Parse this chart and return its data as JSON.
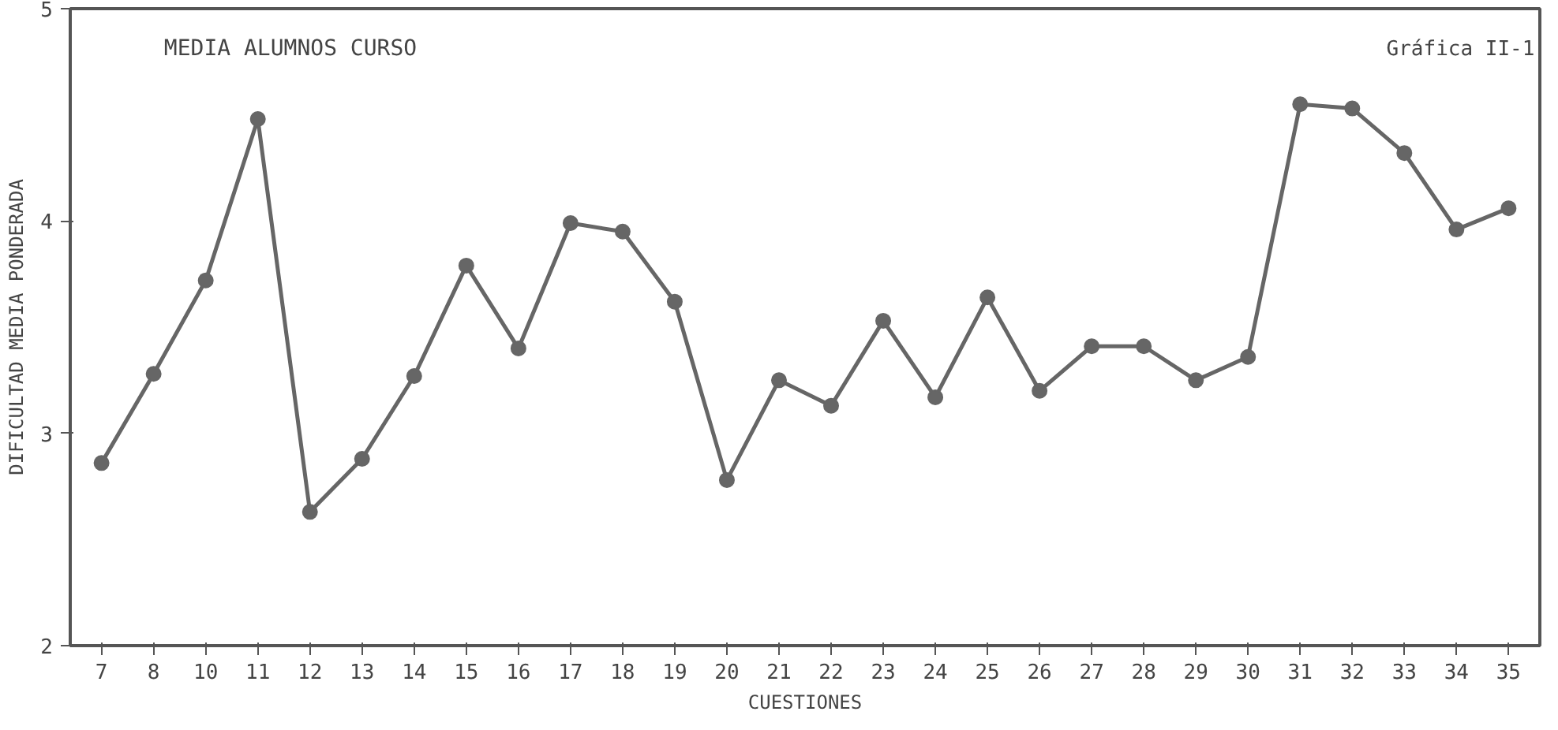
{
  "chart_data": {
    "type": "line",
    "title": "MEDIA ALUMNOS CURSO",
    "xlabel": "CUESTIONES",
    "ylabel": "DIFICULTAD MEDIA PONDERADA",
    "annotations": [
      "Gráfica II-1"
    ],
    "categories": [
      "7",
      "8",
      "10",
      "11",
      "12",
      "13",
      "14",
      "15",
      "16",
      "17",
      "18",
      "19",
      "20",
      "21",
      "22",
      "23",
      "24",
      "25",
      "26",
      "27",
      "28",
      "29",
      "30",
      "31",
      "32",
      "33",
      "34",
      "35"
    ],
    "series": [
      {
        "color": "#666666",
        "values": [
          2.86,
          3.28,
          3.72,
          4.48,
          2.63,
          2.88,
          3.27,
          3.79,
          3.4,
          3.99,
          3.95,
          3.62,
          2.78,
          3.25,
          3.13,
          3.53,
          3.17,
          3.64,
          3.2,
          3.41,
          3.41,
          3.25,
          3.36,
          4.55,
          4.53,
          4.32,
          3.96,
          4.06
        ]
      }
    ],
    "ylim": [
      2,
      5
    ],
    "yticks": [
      2,
      3,
      4,
      5
    ],
    "grid": false,
    "marker": "circle",
    "line_style": "solid"
  }
}
